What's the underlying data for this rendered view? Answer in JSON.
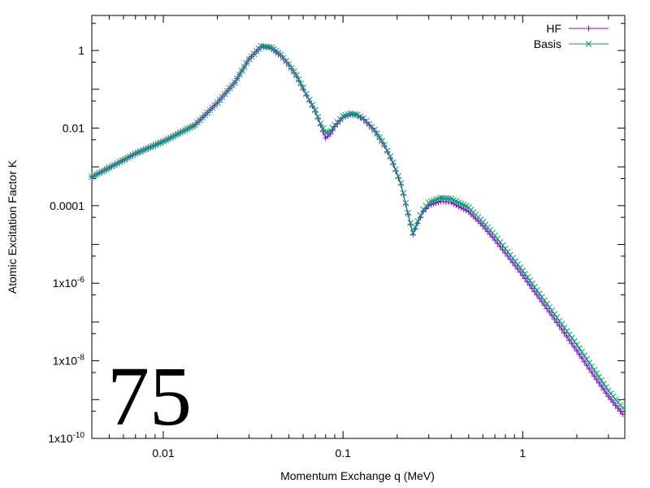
{
  "chart_data": {
    "type": "scatter",
    "title": "",
    "xlabel": "Momentum Exchange q (MeV)",
    "ylabel": "Atomic Excitation Factor K",
    "xscale": "log",
    "yscale": "log",
    "xlim": [
      0.004,
      3.7
    ],
    "ylim": [
      1e-10,
      8
    ],
    "grid": false,
    "legend_position": "top-right",
    "x_ticks": [
      {
        "value": 0.01,
        "label": "0.01"
      },
      {
        "value": 0.1,
        "label": "0.1"
      },
      {
        "value": 1,
        "label": "1"
      }
    ],
    "y_ticks": [
      {
        "value": 1,
        "mant": "1",
        "exp": ""
      },
      {
        "value": 0.01,
        "mant": "0.01",
        "exp": ""
      },
      {
        "value": 0.0001,
        "mant": "0.0001",
        "exp": ""
      },
      {
        "value": 1e-06,
        "mant": "1x10",
        "exp": "-6"
      },
      {
        "value": 1e-08,
        "mant": "1x10",
        "exp": "-8"
      },
      {
        "value": 1e-10,
        "mant": "1x10",
        "exp": "-10"
      }
    ],
    "series": [
      {
        "name": "HF",
        "marker": "plus",
        "color": "#9400d3",
        "points": [
          [
            0.004,
            0.00055
          ],
          [
            0.005,
            0.00095
          ],
          [
            0.007,
            0.0022
          ],
          [
            0.01,
            0.0045
          ],
          [
            0.015,
            0.012
          ],
          [
            0.02,
            0.045
          ],
          [
            0.025,
            0.15
          ],
          [
            0.03,
            0.6
          ],
          [
            0.035,
            1.25
          ],
          [
            0.04,
            1.15
          ],
          [
            0.045,
            0.75
          ],
          [
            0.05,
            0.42
          ],
          [
            0.055,
            0.22
          ],
          [
            0.06,
            0.1
          ],
          [
            0.065,
            0.05
          ],
          [
            0.07,
            0.027
          ],
          [
            0.075,
            0.012
          ],
          [
            0.08,
            0.0055
          ],
          [
            0.085,
            0.007
          ],
          [
            0.09,
            0.011
          ],
          [
            0.1,
            0.019
          ],
          [
            0.11,
            0.022
          ],
          [
            0.12,
            0.021
          ],
          [
            0.13,
            0.017
          ],
          [
            0.15,
            0.0085
          ],
          [
            0.17,
            0.0035
          ],
          [
            0.19,
            0.0012
          ],
          [
            0.21,
            0.00035
          ],
          [
            0.23,
            6e-05
          ],
          [
            0.245,
            1.8e-05
          ],
          [
            0.26,
            3.5e-05
          ],
          [
            0.28,
            7e-05
          ],
          [
            0.3,
            0.0001
          ],
          [
            0.35,
            0.00013
          ],
          [
            0.4,
            0.00012
          ],
          [
            0.5,
            7e-05
          ],
          [
            0.6,
            3e-05
          ],
          [
            0.7,
            1.3e-05
          ],
          [
            0.8,
            6e-06
          ],
          [
            1.0,
            1.6e-06
          ],
          [
            1.2,
            5e-07
          ],
          [
            1.5,
            1.2e-07
          ],
          [
            2.0,
            1.8e-08
          ],
          [
            2.5,
            4e-09
          ],
          [
            3.0,
            1.2e-09
          ],
          [
            3.6,
            4.2e-10
          ]
        ]
      },
      {
        "name": "Basis",
        "marker": "cross",
        "color": "#009e73",
        "points": [
          [
            0.004,
            0.00055
          ],
          [
            0.005,
            0.00095
          ],
          [
            0.007,
            0.0022
          ],
          [
            0.01,
            0.0045
          ],
          [
            0.015,
            0.012
          ],
          [
            0.02,
            0.045
          ],
          [
            0.025,
            0.15
          ],
          [
            0.03,
            0.6
          ],
          [
            0.035,
            1.3
          ],
          [
            0.04,
            1.2
          ],
          [
            0.045,
            0.78
          ],
          [
            0.05,
            0.44
          ],
          [
            0.055,
            0.23
          ],
          [
            0.06,
            0.11
          ],
          [
            0.065,
            0.053
          ],
          [
            0.07,
            0.029
          ],
          [
            0.075,
            0.013
          ],
          [
            0.08,
            0.0075
          ],
          [
            0.085,
            0.0085
          ],
          [
            0.09,
            0.012
          ],
          [
            0.1,
            0.02
          ],
          [
            0.11,
            0.024
          ],
          [
            0.12,
            0.022
          ],
          [
            0.13,
            0.018
          ],
          [
            0.15,
            0.009
          ],
          [
            0.17,
            0.0037
          ],
          [
            0.19,
            0.0013
          ],
          [
            0.21,
            0.00038
          ],
          [
            0.23,
            6.5e-05
          ],
          [
            0.245,
            2e-05
          ],
          [
            0.26,
            4e-05
          ],
          [
            0.28,
            8e-05
          ],
          [
            0.3,
            0.00012
          ],
          [
            0.35,
            0.00016
          ],
          [
            0.4,
            0.00015
          ],
          [
            0.5,
            9e-05
          ],
          [
            0.6,
            3.8e-05
          ],
          [
            0.7,
            1.7e-05
          ],
          [
            0.8,
            7.8e-06
          ],
          [
            1.0,
            2.1e-06
          ],
          [
            1.2,
            6.6e-07
          ],
          [
            1.5,
            1.6e-07
          ],
          [
            2.0,
            2.6e-08
          ],
          [
            2.5,
            5.8e-09
          ],
          [
            3.0,
            1.7e-09
          ],
          [
            3.6,
            6e-10
          ]
        ]
      }
    ],
    "annotation": "75"
  }
}
